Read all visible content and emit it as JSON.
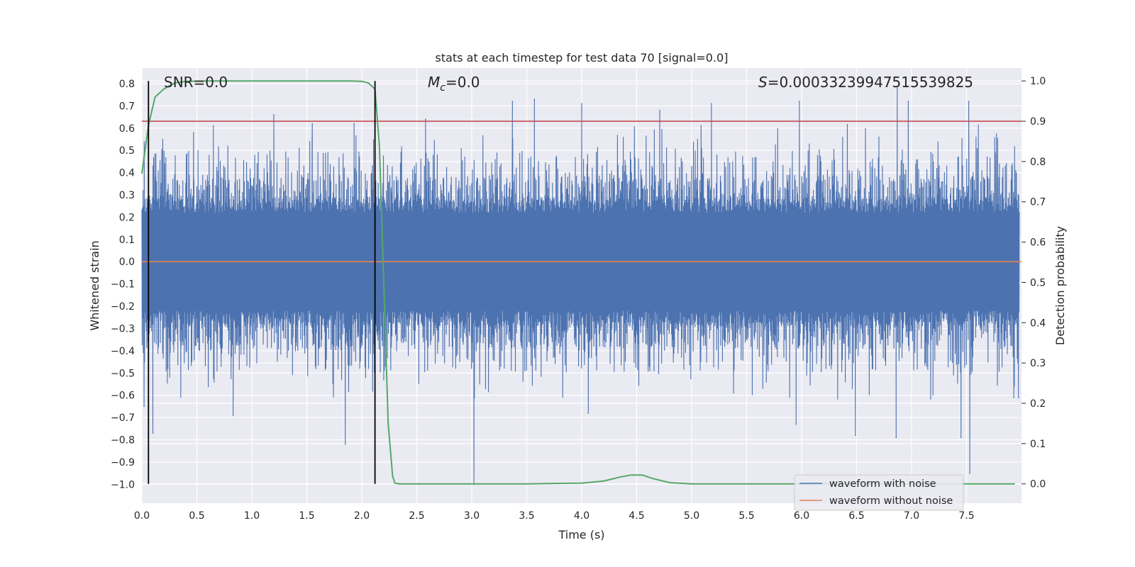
{
  "chart_data": {
    "type": "line",
    "title": "stats at each timestep for test data 70 [signal=0.0]",
    "xlabel": "Time (s)",
    "ylabel": "Whitened strain",
    "y2label": "Detection probability",
    "xlim": [
      0.0,
      8.0
    ],
    "ylim": [
      -1.085,
      0.87
    ],
    "y2lim": [
      -0.048,
      1.032
    ],
    "xticks": [
      "0.0",
      "0.5",
      "1.0",
      "1.5",
      "2.0",
      "2.5",
      "3.0",
      "3.5",
      "4.0",
      "4.5",
      "5.0",
      "5.5",
      "6.0",
      "6.5",
      "7.0",
      "7.5"
    ],
    "yticks": [
      "0.8",
      "0.7",
      "0.6",
      "0.5",
      "0.4",
      "0.3",
      "0.2",
      "0.1",
      "0.0",
      "-0.1",
      "-0.2",
      "-0.3",
      "-0.4",
      "-0.5",
      "-0.6",
      "-0.7",
      "-0.8",
      "-0.9",
      "-1.0"
    ],
    "y2ticks": [
      "1.0",
      "0.9",
      "0.8",
      "0.7",
      "0.6",
      "0.5",
      "0.4",
      "0.3",
      "0.2",
      "0.1",
      "0.0"
    ],
    "grid": true,
    "legend_position": "lower-right",
    "annotations": {
      "snr": "SNR=0.0",
      "mc_symbol": "M",
      "mc_sub": "c",
      "mc_value": "=0.0",
      "s_symbol": "S",
      "s_value": "=0.00033239947515539825"
    },
    "threshold": 0.9,
    "vertical_lines_x": [
      0.06,
      2.12
    ],
    "series": [
      {
        "name": "waveform with noise",
        "color": "#4c72b0",
        "note": "dense whitened-noise trace, mostly within +/-0.3 with spikes to about +0.78 and -1.0",
        "peaks": [
          {
            "x": 0.02,
            "y": -0.65
          },
          {
            "x": 0.1,
            "y": -0.77
          },
          {
            "x": 0.19,
            "y": 0.55
          },
          {
            "x": 0.47,
            "y": 0.58
          },
          {
            "x": 0.65,
            "y": 0.61
          },
          {
            "x": 0.83,
            "y": -0.69
          },
          {
            "x": 1.2,
            "y": 0.66
          },
          {
            "x": 1.55,
            "y": 0.62
          },
          {
            "x": 1.85,
            "y": -0.82
          },
          {
            "x": 1.93,
            "y": 0.62
          },
          {
            "x": 2.2,
            "y": -0.53
          },
          {
            "x": 2.58,
            "y": 0.64
          },
          {
            "x": 3.02,
            "y": -1.0
          },
          {
            "x": 3.37,
            "y": 0.72
          },
          {
            "x": 3.57,
            "y": 0.73
          },
          {
            "x": 4.0,
            "y": 0.71
          },
          {
            "x": 4.06,
            "y": -0.68
          },
          {
            "x": 4.71,
            "y": 0.68
          },
          {
            "x": 5.18,
            "y": 0.71
          },
          {
            "x": 5.95,
            "y": -0.73
          },
          {
            "x": 5.98,
            "y": 0.72
          },
          {
            "x": 6.49,
            "y": -0.78
          },
          {
            "x": 6.86,
            "y": -0.79
          },
          {
            "x": 6.87,
            "y": 0.78
          },
          {
            "x": 6.97,
            "y": 0.72
          },
          {
            "x": 7.45,
            "y": -0.79
          },
          {
            "x": 7.52,
            "y": 0.72
          },
          {
            "x": 7.53,
            "y": -0.95
          },
          {
            "x": 7.93,
            "y": -0.61
          }
        ]
      },
      {
        "name": "waveform without noise",
        "color": "#dd8452",
        "x": [
          0.0,
          8.0
        ],
        "y": [
          0.0,
          0.0
        ]
      },
      {
        "name": "Detection probability",
        "color": "#55a868",
        "axis": "right",
        "x": [
          0.0,
          0.06,
          0.12,
          0.2,
          0.3,
          0.4,
          0.6,
          1.0,
          1.5,
          1.9,
          2.0,
          2.06,
          2.12,
          2.16,
          2.2,
          2.24,
          2.28,
          2.3,
          2.34,
          2.4,
          3.0,
          3.5,
          4.0,
          4.2,
          4.35,
          4.45,
          4.55,
          4.65,
          4.8,
          5.0,
          6.0,
          7.0,
          7.94
        ],
        "y": [
          0.77,
          0.89,
          0.96,
          0.98,
          0.995,
          0.999,
          1.0,
          1.0,
          1.0,
          1.0,
          0.999,
          0.995,
          0.98,
          0.84,
          0.5,
          0.15,
          0.02,
          0.002,
          0.0,
          0.0,
          0.0,
          0.0,
          0.002,
          0.007,
          0.017,
          0.022,
          0.022,
          0.013,
          0.003,
          0.0,
          0.0,
          0.0,
          0.0
        ]
      },
      {
        "name": "Threshold",
        "color": "#c44e52",
        "axis": "right",
        "x": [
          0.0,
          8.0
        ],
        "y": [
          0.9,
          0.9
        ]
      }
    ],
    "legend": [
      {
        "label": "waveform with noise",
        "color": "#4c72b0"
      },
      {
        "label": "waveform without noise",
        "color": "#dd8452"
      }
    ]
  }
}
